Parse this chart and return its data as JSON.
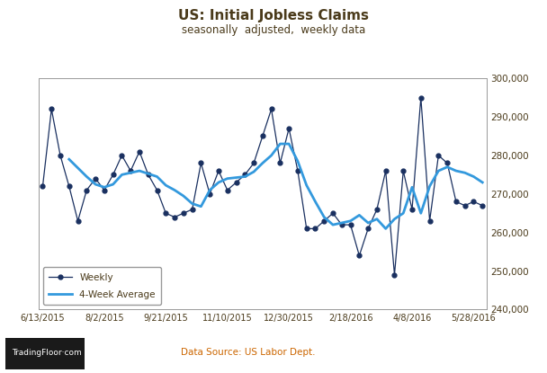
{
  "title": "US: Initial Jobless Claims",
  "subtitle": "seasonally  adjusted,  weekly data",
  "source": "Data Source: US Labor Dept.",
  "title_color": "#4a3a1a",
  "subtitle_color": "#4a3a1a",
  "source_color": "#cc6600",
  "background_color": "#ffffff",
  "plot_bg_color": "#ffffff",
  "weekly_color": "#1a3060",
  "avg_color": "#3399dd",
  "grid_color": "#cccccc",
  "border_color": "#999999",
  "ylim": [
    240000,
    300000
  ],
  "yticks": [
    240000,
    250000,
    260000,
    270000,
    280000,
    290000,
    300000
  ],
  "xtick_labels": [
    "6/13/2015",
    "8/2/2015",
    "9/21/2015",
    "11/10/2015",
    "12/30/2015",
    "2/18/2016",
    "4/8/2016",
    "5/28/2016"
  ],
  "weekly_x": [
    0,
    1,
    2,
    3,
    4,
    5,
    6,
    7,
    8,
    9,
    10,
    11,
    12,
    13,
    14,
    15,
    16,
    17,
    18,
    19,
    20,
    21,
    22,
    23,
    24,
    25,
    26,
    27,
    28,
    29,
    30,
    31,
    32,
    33,
    34,
    35,
    36,
    37,
    38,
    39,
    40,
    41,
    42,
    43,
    44,
    45,
    46,
    47,
    48,
    49,
    50
  ],
  "weekly_y": [
    272000,
    292000,
    280000,
    272000,
    263000,
    271000,
    274000,
    271000,
    275000,
    280000,
    276000,
    281000,
    275000,
    271000,
    265000,
    264000,
    265000,
    266000,
    278000,
    270000,
    276000,
    271000,
    273000,
    275000,
    278000,
    285000,
    292000,
    278000,
    287000,
    276000,
    261000,
    261000,
    263000,
    265000,
    262000,
    262000,
    254000,
    261000,
    266000,
    276000,
    249000,
    276000,
    266000,
    295000,
    263000,
    280000,
    278000,
    268000,
    267000,
    268000,
    267000
  ],
  "avg_x": [
    3,
    4,
    5,
    6,
    7,
    8,
    9,
    10,
    11,
    12,
    13,
    14,
    15,
    16,
    17,
    18,
    19,
    20,
    21,
    22,
    23,
    24,
    25,
    26,
    27,
    28,
    29,
    30,
    31,
    32,
    33,
    34,
    35,
    36,
    37,
    38,
    39,
    40,
    41,
    42,
    43,
    44,
    45,
    46,
    47,
    48,
    49,
    50
  ],
  "avg_y": [
    279000,
    276750,
    274500,
    272500,
    271750,
    272500,
    275000,
    275500,
    276000,
    275250,
    274500,
    272250,
    271000,
    269500,
    267500,
    266750,
    271000,
    273000,
    274000,
    274250,
    274500,
    275750,
    278000,
    280000,
    283000,
    283000,
    278500,
    272250,
    268000,
    264000,
    262000,
    262500,
    263000,
    264500,
    262500,
    263500,
    261000,
    263500,
    265000,
    271750,
    265000,
    272000,
    276000,
    277000,
    276000,
    275500,
    274500,
    273000
  ]
}
